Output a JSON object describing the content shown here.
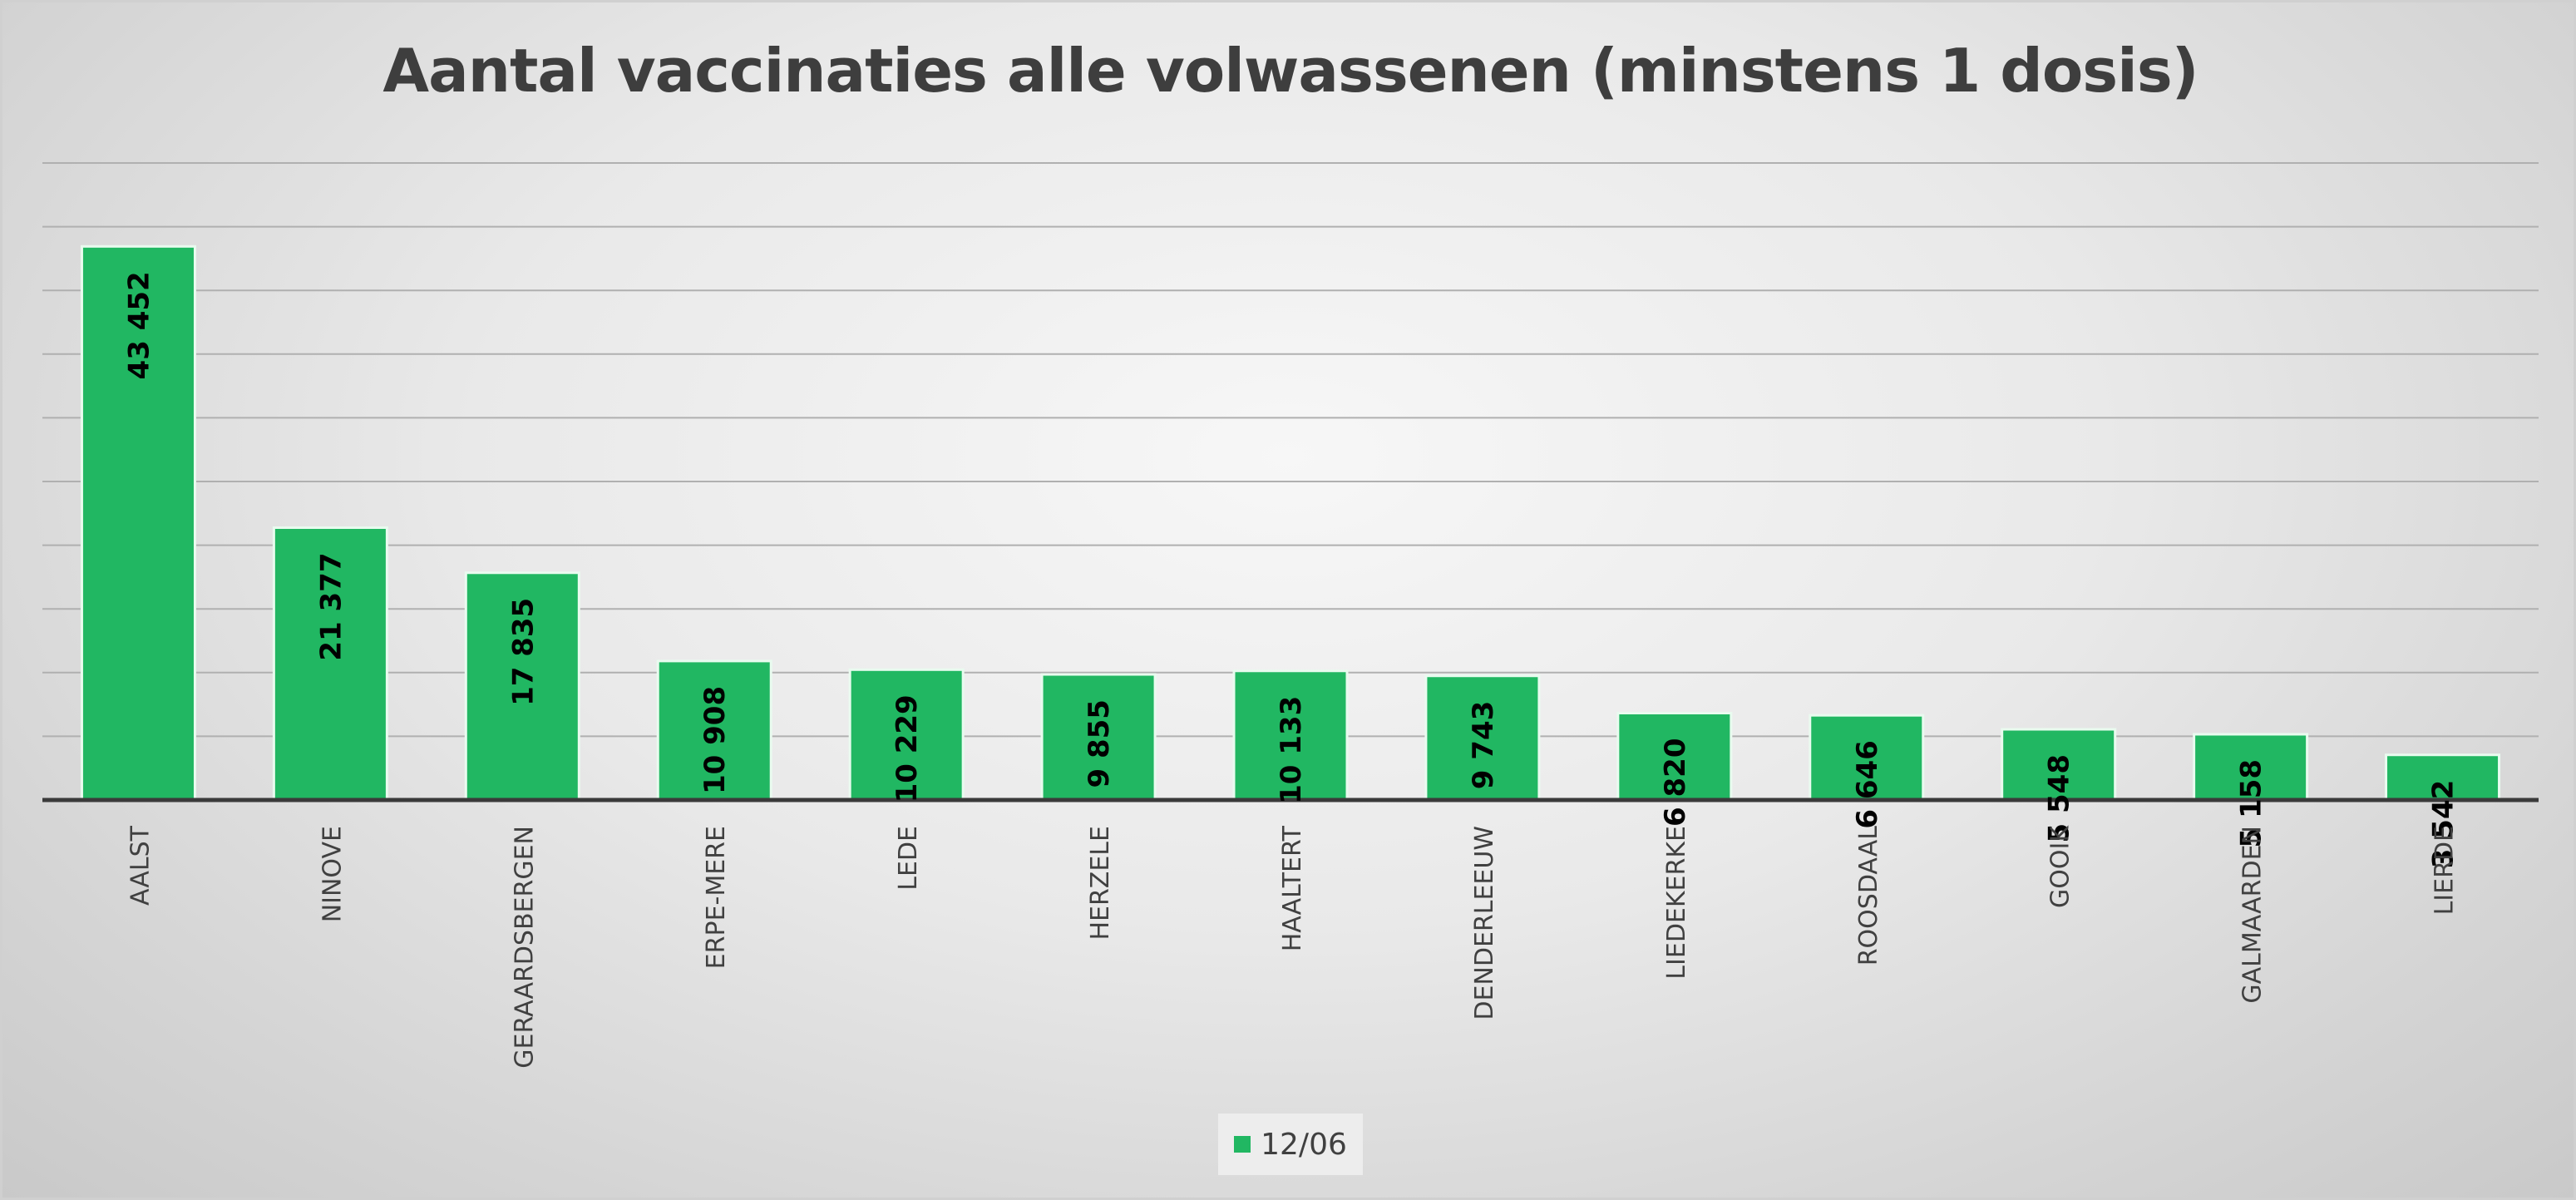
{
  "colors": {
    "bar_fill": "#21b762",
    "bar_stroke": "#e9fbef",
    "title": "#3e3e3e",
    "gridline": "#b0b0b0",
    "axis": "#3a3a3a",
    "data_label": "#000000",
    "category_label": "#404040"
  },
  "chart_data": {
    "type": "bar",
    "title": "Aantal vaccinaties alle volwassenen (minstens 1 dosis)",
    "xlabel": "",
    "ylabel": "",
    "categories": [
      "AALST",
      "NINOVE",
      "GERAARDSBERGEN",
      "ERPE-MERE",
      "LEDE",
      "HERZELE",
      "HAALTERT",
      "DENDERLEEUW",
      "LIEDEKERKE",
      "ROOSDAAL",
      "GOOIK",
      "GALMAARDEN",
      "LIERDE"
    ],
    "series": [
      {
        "name": "12/06",
        "values": [
          43452,
          21377,
          17835,
          10908,
          10229,
          9855,
          10133,
          9743,
          6820,
          6646,
          5548,
          5158,
          3542
        ],
        "labels": [
          "43 452",
          "21 377",
          "17 835",
          "10 908",
          "10 229",
          "9 855",
          "10 133",
          "9 743",
          "6 820",
          "6 646",
          "5 548",
          "5 158",
          "3 542"
        ]
      }
    ],
    "ylim": [
      0,
      50000
    ],
    "y_major_step": 5000,
    "y_tick_labels_shown": false,
    "grid": true,
    "legend_position": "bottom",
    "x_labels_rotated": true,
    "data_labels_rotated": true
  }
}
